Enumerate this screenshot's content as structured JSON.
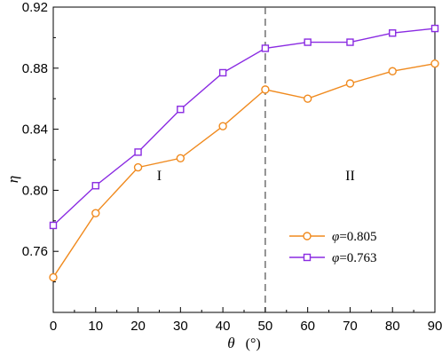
{
  "chart_data": {
    "type": "line",
    "xlabel": "θ",
    "xlabel_unit": "(°)",
    "ylabel": "η",
    "xlim": [
      0,
      90
    ],
    "ylim": [
      0.72,
      0.92
    ],
    "x_ticks": [
      0,
      10,
      20,
      30,
      40,
      50,
      60,
      70,
      80,
      90
    ],
    "y_ticks": [
      0.76,
      0.8,
      0.84,
      0.88,
      0.92
    ],
    "y_tick_labels": [
      "0.76",
      "0.80",
      "0.84",
      "0.88",
      "0.92"
    ],
    "x": [
      0,
      10,
      20,
      30,
      40,
      50,
      60,
      70,
      80,
      90
    ],
    "series": [
      {
        "name": "φ=0.805",
        "legend_symbol": "φ",
        "legend_value": "=0.805",
        "color": "#f08a1e",
        "marker": "circle",
        "values": [
          0.743,
          0.785,
          0.815,
          0.821,
          0.842,
          0.866,
          0.86,
          0.87,
          0.878,
          0.883
        ]
      },
      {
        "name": "φ=0.763",
        "legend_symbol": "φ",
        "legend_value": "=0.763",
        "color": "#8a2be2",
        "marker": "square",
        "values": [
          0.777,
          0.803,
          0.825,
          0.853,
          0.877,
          0.893,
          0.897,
          0.897,
          0.903,
          0.906
        ]
      }
    ],
    "divider_x": 50,
    "regions": [
      {
        "label": "I",
        "x": 25,
        "y": 0.81
      },
      {
        "label": "II",
        "x": 70,
        "y": 0.81
      }
    ],
    "grid": false,
    "legend_position": "lower-right"
  }
}
